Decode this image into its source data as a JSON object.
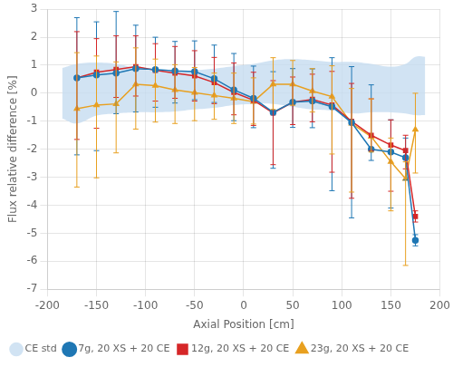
{
  "chart_data": {
    "type": "line",
    "xlabel": "Axial Position [cm]",
    "ylabel": "Flux relative difference [%]",
    "x": [
      -170,
      -150,
      -130,
      -110,
      -90,
      -70,
      -50,
      -30,
      -10,
      10,
      30,
      50,
      70,
      90,
      110,
      130,
      150,
      165,
      175
    ],
    "series": [
      {
        "name": "CE std",
        "type": "area",
        "color": "#c5dcf0",
        "x": [
          -185,
          -170,
          -150,
          -130,
          -110,
          -90,
          -70,
          -50,
          -30,
          -10,
          10,
          30,
          50,
          70,
          90,
          110,
          130,
          150,
          165,
          175,
          185
        ],
        "upper": [
          0.9,
          1.05,
          1.1,
          1.05,
          0.9,
          0.78,
          0.78,
          0.82,
          0.88,
          0.97,
          1.05,
          1.18,
          1.22,
          1.18,
          1.12,
          1.12,
          1.05,
          0.95,
          1.05,
          1.3,
          1.3
        ],
        "lower": [
          -0.9,
          -1.08,
          -0.8,
          -0.72,
          -0.68,
          -0.68,
          -0.65,
          -0.58,
          -0.52,
          -0.42,
          -0.38,
          -0.38,
          -0.48,
          -0.58,
          -0.62,
          -0.72,
          -0.68,
          -0.68,
          -0.72,
          -0.78,
          -0.78
        ]
      },
      {
        "name": "7g, 20 XS + 20 CE",
        "type": "line",
        "color": "#1f77b4",
        "marker": "circle",
        "values": [
          0.55,
          0.65,
          0.72,
          0.88,
          0.85,
          0.8,
          0.77,
          0.52,
          0.12,
          -0.18,
          -0.68,
          -0.32,
          -0.28,
          -0.48,
          -1.05,
          -2.0,
          -2.1,
          -2.3,
          -5.25
        ],
        "error_up": [
          2.15,
          1.9,
          2.2,
          1.55,
          1.15,
          1.05,
          1.1,
          1.2,
          1.3,
          1.15,
          1.45,
          1.2,
          1.15,
          1.75,
          2.0,
          2.3,
          1.15,
          0.7,
          0.2
        ],
        "error_down": [
          2.75,
          2.7,
          1.45,
          1.55,
          1.35,
          1.15,
          1.0,
          0.85,
          1.1,
          1.05,
          2.0,
          0.9,
          0.95,
          3.0,
          3.4,
          0.4,
          2.0,
          0.8,
          0.2
        ]
      },
      {
        "name": "12g, 20 XS + 20 CE",
        "type": "line",
        "color": "#d62728",
        "marker": "square",
        "values": [
          0.55,
          0.75,
          0.85,
          0.95,
          0.82,
          0.72,
          0.62,
          0.38,
          0.03,
          -0.25,
          -0.7,
          -0.32,
          -0.22,
          -0.42,
          -1.0,
          -1.5,
          -1.85,
          -2.05,
          -4.4
        ],
        "error_up": [
          1.65,
          1.2,
          1.2,
          1.1,
          0.95,
          0.95,
          0.9,
          0.9,
          1.05,
          1.0,
          1.15,
          0.9,
          0.9,
          1.2,
          1.35,
          1.3,
          0.9,
          0.55,
          0.2
        ],
        "error_down": [
          2.2,
          2.0,
          1.0,
          1.05,
          1.1,
          0.9,
          0.9,
          0.75,
          0.8,
          0.9,
          1.85,
          0.8,
          0.8,
          2.4,
          2.75,
          0.55,
          1.65,
          0.65,
          0.2
        ]
      },
      {
        "name": "23g, 20 XS + 20 CE",
        "type": "line",
        "color": "#e8a020",
        "marker": "triangle",
        "values": [
          -0.55,
          -0.42,
          -0.38,
          0.32,
          0.27,
          0.12,
          0.02,
          -0.08,
          -0.18,
          -0.3,
          0.32,
          0.32,
          0.08,
          -0.12,
          -1.08,
          -1.55,
          -2.45,
          -3.05,
          -1.3
        ],
        "error_up": [
          2.0,
          1.75,
          1.5,
          1.3,
          0.95,
          0.9,
          0.9,
          0.8,
          0.9,
          0.85,
          0.95,
          0.85,
          0.8,
          1.1,
          1.25,
          1.35,
          0.85,
          0.6,
          1.3
        ],
        "error_down": [
          2.8,
          2.6,
          1.75,
          1.6,
          1.3,
          1.2,
          1.0,
          0.85,
          0.9,
          0.8,
          0.9,
          0.75,
          0.75,
          2.05,
          2.45,
          0.55,
          1.75,
          3.1,
          1.55
        ]
      }
    ],
    "xlim": [
      -200,
      200
    ],
    "ylim": [
      -7,
      3
    ],
    "xticks": [
      -200,
      -150,
      -100,
      -50,
      0,
      50,
      100,
      150,
      200
    ],
    "yticks": [
      -7,
      -6,
      -5,
      -4,
      -3,
      -2,
      -1,
      0,
      1,
      2,
      3
    ],
    "grid": true,
    "legend": "lower left"
  }
}
